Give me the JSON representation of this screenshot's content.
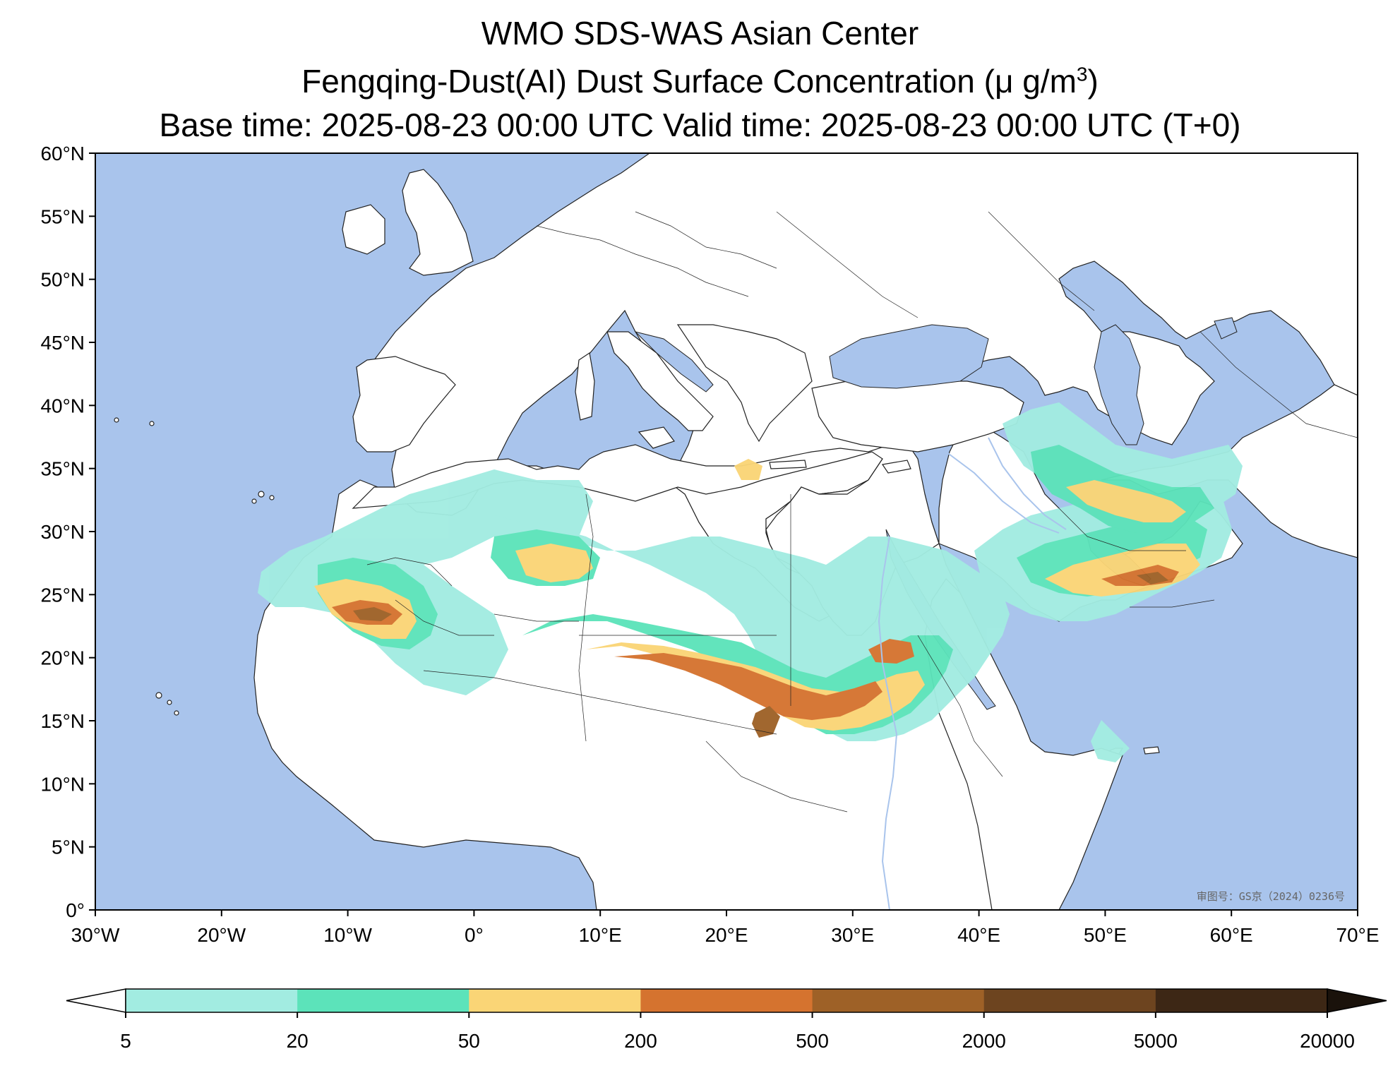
{
  "title": {
    "line1": "WMO SDS-WAS Asian Center",
    "line2_main": "Fengqing-Dust(AI) Dust Surface Concentration (μ g/m",
    "line2_sup": "3",
    "line2_end": ")",
    "line3": "Base time: 2025-08-23 00:00 UTC Valid time: 2025-08-23 00:00 UTC (T+0)"
  },
  "map": {
    "lat_ticks": [
      "60°N",
      "55°N",
      "50°N",
      "45°N",
      "40°N",
      "35°N",
      "30°N",
      "25°N",
      "20°N",
      "15°N",
      "10°N",
      "5°N",
      "0°"
    ],
    "lon_ticks": [
      "30°W",
      "20°W",
      "10°W",
      "0°",
      "10°E",
      "20°E",
      "30°E",
      "40°E",
      "50°E",
      "60°E",
      "70°E"
    ],
    "approval_stamp": "审图号：GS京（2024）0236号",
    "colors": {
      "ocean": "#a9c4ec",
      "land": "#ffffff",
      "border": "#333333",
      "river": "#a9c4ec"
    }
  },
  "colorbar": {
    "labels": [
      "5",
      "20",
      "50",
      "200",
      "500",
      "2000",
      "5000",
      "20000"
    ],
    "colors": [
      "#a2ece1",
      "#5ce3ba",
      "#fad576",
      "#d5732f",
      "#9e6127",
      "#6d441f",
      "#3d2715",
      "#1a120b"
    ],
    "extend": "both"
  }
}
